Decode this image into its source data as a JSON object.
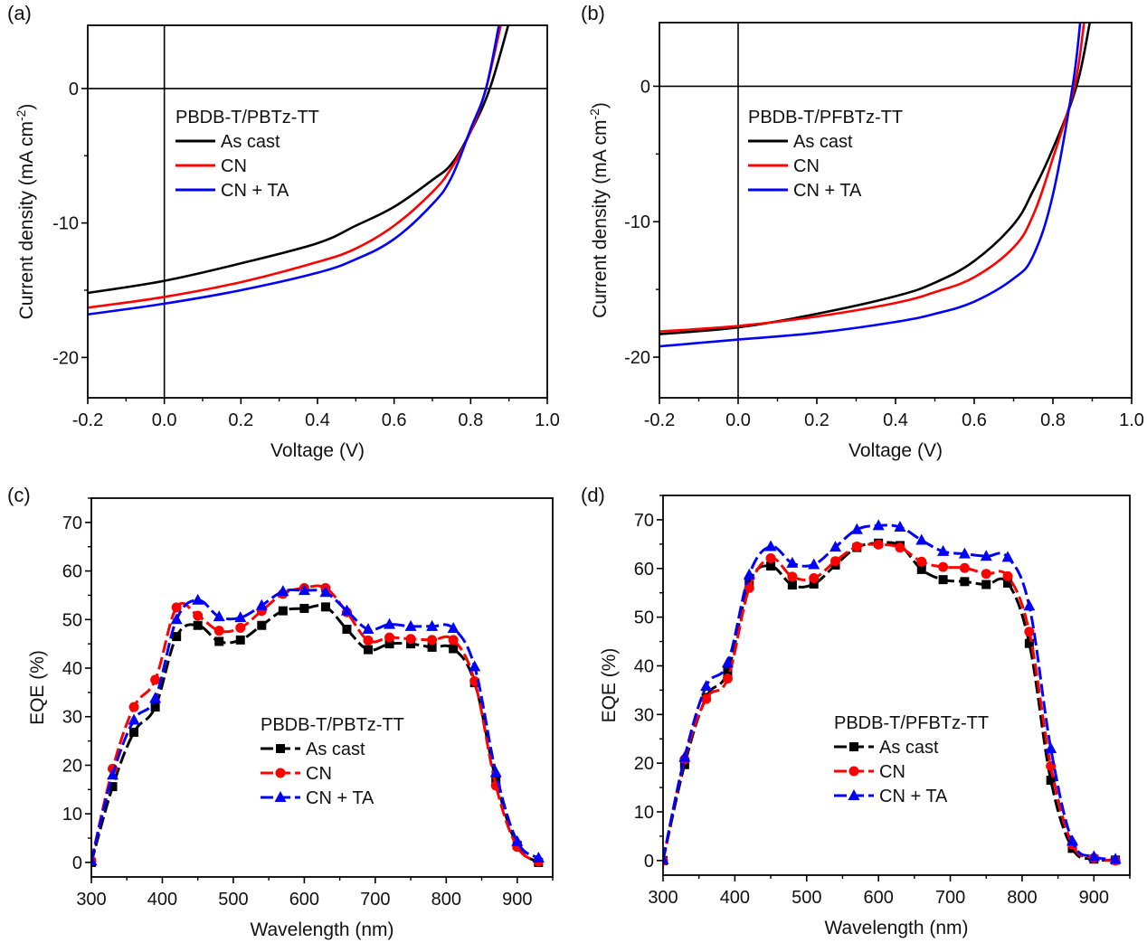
{
  "figure": {
    "panels": [
      "(a)",
      "(b)",
      "(c)",
      "(d)"
    ]
  },
  "chart_data": [
    {
      "id": "a",
      "panel_label": "(a)",
      "type": "line",
      "title": "",
      "xlabel": "Voltage (V)",
      "ylabel": "Current density (mA cm-2)",
      "ylabel_main": "Current density (mA cm",
      "ylabel_sup": "-2",
      "ylabel_end": ")",
      "xlim": [
        -0.2,
        1.0
      ],
      "ylim": [
        -23,
        4.7
      ],
      "xticks": [
        -0.2,
        0.0,
        0.2,
        0.4,
        0.6,
        0.8,
        1.0
      ],
      "xtick_labels": [
        "-0.2",
        "0.0",
        "0.2",
        "0.4",
        "0.6",
        "0.8",
        "1.0"
      ],
      "yticks": [
        0,
        -10,
        -20
      ],
      "ytick_labels": [
        "0",
        "-10",
        "-20"
      ],
      "zero_lines": true,
      "grid": false,
      "legend_title": "PBDB-T/PBTz-TT",
      "legend_position": "upper-left-center",
      "series": [
        {
          "name": "As cast",
          "color": "#000000",
          "x": [
            -0.2,
            0.0,
            0.2,
            0.4,
            0.5,
            0.6,
            0.7,
            0.75,
            0.8,
            0.85,
            0.9
          ],
          "y": [
            -15.2,
            -14.3,
            -13.0,
            -11.5,
            -10.2,
            -8.8,
            -6.8,
            -5.6,
            -3.2,
            0.0,
            4.9
          ]
        },
        {
          "name": "CN",
          "color": "#ff0000",
          "x": [
            -0.2,
            0.0,
            0.2,
            0.4,
            0.5,
            0.6,
            0.7,
            0.75,
            0.8,
            0.84,
            0.88
          ],
          "y": [
            -16.3,
            -15.5,
            -14.4,
            -12.9,
            -11.9,
            -10.2,
            -7.7,
            -5.9,
            -3.2,
            0.0,
            4.9
          ]
        },
        {
          "name": "CN + TA",
          "color": "#0000ff",
          "x": [
            -0.2,
            0.0,
            0.2,
            0.4,
            0.5,
            0.6,
            0.7,
            0.75,
            0.8,
            0.84,
            0.875
          ],
          "y": [
            -16.8,
            -16.0,
            -15.0,
            -13.7,
            -12.7,
            -11.2,
            -8.6,
            -6.6,
            -3.0,
            0.0,
            4.9
          ]
        }
      ]
    },
    {
      "id": "b",
      "panel_label": "(b)",
      "type": "line",
      "title": "",
      "xlabel": "Voltage (V)",
      "ylabel": "Current density (mA cm-2)",
      "ylabel_main": "Current density (mA cm",
      "ylabel_sup": "-2",
      "ylabel_end": ")",
      "xlim": [
        -0.2,
        1.0
      ],
      "ylim": [
        -23,
        4.7
      ],
      "xticks": [
        -0.2,
        0.0,
        0.2,
        0.4,
        0.6,
        0.8,
        1.0
      ],
      "xtick_labels": [
        "-0.2",
        "0.0",
        "0.2",
        "0.4",
        "0.6",
        "0.8",
        "1.0"
      ],
      "yticks": [
        0,
        -10,
        -20
      ],
      "ytick_labels": [
        "0",
        "-10",
        "-20"
      ],
      "zero_lines": true,
      "grid": false,
      "legend_title": "PBDB-T/PFBTz-TT",
      "legend_position": "upper-left-center",
      "series": [
        {
          "name": "As cast",
          "color": "#000000",
          "x": [
            -0.2,
            0.0,
            0.2,
            0.4,
            0.5,
            0.6,
            0.7,
            0.75,
            0.8,
            0.86,
            0.895
          ],
          "y": [
            -18.3,
            -17.8,
            -16.8,
            -15.5,
            -14.5,
            -12.9,
            -10.2,
            -7.7,
            -4.6,
            0.0,
            4.9
          ]
        },
        {
          "name": "CN",
          "color": "#ff0000",
          "x": [
            -0.2,
            0.0,
            0.2,
            0.4,
            0.5,
            0.6,
            0.7,
            0.75,
            0.8,
            0.855,
            0.88
          ],
          "y": [
            -18.1,
            -17.7,
            -17.0,
            -16.0,
            -15.2,
            -14.1,
            -11.9,
            -9.5,
            -5.3,
            0.0,
            4.9
          ]
        },
        {
          "name": "CN + TA",
          "color": "#0000ff",
          "x": [
            -0.2,
            0.0,
            0.2,
            0.4,
            0.5,
            0.6,
            0.7,
            0.75,
            0.8,
            0.85,
            0.87
          ],
          "y": [
            -19.2,
            -18.7,
            -18.2,
            -17.4,
            -16.8,
            -15.9,
            -14.2,
            -12.5,
            -8.0,
            0.0,
            4.9
          ]
        }
      ]
    },
    {
      "id": "c",
      "panel_label": "(c)",
      "type": "line",
      "title": "",
      "xlabel": "Wavelength (nm)",
      "ylabel": "EQE (%)",
      "xlim": [
        300,
        950
      ],
      "ylim": [
        -3,
        75
      ],
      "xticks": [
        300,
        400,
        500,
        600,
        700,
        800,
        900
      ],
      "xtick_labels": [
        "300",
        "400",
        "500",
        "600",
        "700",
        "800",
        "900"
      ],
      "yticks": [
        0,
        10,
        20,
        30,
        40,
        50,
        60,
        70
      ],
      "ytick_labels": [
        "0",
        "10",
        "20",
        "30",
        "40",
        "50",
        "60",
        "70"
      ],
      "grid": false,
      "legend_title": "PBDB-T/PBTz-TT",
      "legend_position": "lower-center",
      "x": [
        300,
        330,
        360,
        390,
        420,
        450,
        480,
        510,
        540,
        570,
        600,
        630,
        660,
        690,
        720,
        750,
        780,
        810,
        840,
        870,
        900,
        930
      ],
      "series": [
        {
          "name": "As cast",
          "color": "#000000",
          "marker": "square",
          "values": [
            0.0,
            15.6,
            26.8,
            32.0,
            46.5,
            48.8,
            45.5,
            45.8,
            48.8,
            51.8,
            52.3,
            52.6,
            48.0,
            43.8,
            45.0,
            45.0,
            44.3,
            44.0,
            37.0,
            17.0,
            3.5,
            0.0
          ]
        },
        {
          "name": "CN",
          "color": "#ff0000",
          "marker": "circle",
          "values": [
            0.3,
            19.3,
            32.0,
            37.6,
            52.5,
            50.8,
            47.7,
            48.3,
            51.8,
            55.3,
            56.5,
            56.5,
            51.5,
            45.7,
            46.3,
            46.0,
            45.8,
            45.8,
            37.3,
            15.8,
            3.2,
            0.2
          ]
        },
        {
          "name": "CN + TA",
          "color": "#0000ff",
          "marker": "triangle",
          "values": [
            0.3,
            18.0,
            29.3,
            33.8,
            50.0,
            54.0,
            50.6,
            50.4,
            52.9,
            55.8,
            56.0,
            55.6,
            51.8,
            48.0,
            49.0,
            48.6,
            48.6,
            48.2,
            40.3,
            18.5,
            4.3,
            0.9
          ]
        }
      ]
    },
    {
      "id": "d",
      "panel_label": "(d)",
      "type": "line",
      "title": "",
      "xlabel": "Wavelength (nm)",
      "ylabel": "EQE (%)",
      "xlim": [
        300,
        950
      ],
      "ylim": [
        -3,
        75
      ],
      "xticks": [
        300,
        400,
        500,
        600,
        700,
        800,
        900
      ],
      "xtick_labels": [
        "300",
        "400",
        "500",
        "600",
        "700",
        "800",
        "900"
      ],
      "yticks": [
        0,
        10,
        20,
        30,
        40,
        50,
        60,
        70
      ],
      "ytick_labels": [
        "0",
        "10",
        "20",
        "30",
        "40",
        "50",
        "60",
        "70"
      ],
      "grid": false,
      "legend_title": "PBDB-T/PFBTz-TT",
      "legend_position": "lower-center",
      "x": [
        300,
        330,
        360,
        390,
        420,
        450,
        480,
        510,
        540,
        570,
        600,
        630,
        660,
        690,
        720,
        750,
        780,
        810,
        840,
        870,
        900,
        930
      ],
      "series": [
        {
          "name": "As cast",
          "color": "#000000",
          "marker": "square",
          "values": [
            0.0,
            19.7,
            33.5,
            38.8,
            57.0,
            60.5,
            56.6,
            56.8,
            60.7,
            64.3,
            65.2,
            64.7,
            59.8,
            57.7,
            57.3,
            56.7,
            57.0,
            44.6,
            16.5,
            2.5,
            0.3,
            0.1
          ]
        },
        {
          "name": "CN",
          "color": "#ff0000",
          "marker": "circle",
          "values": [
            0.0,
            20.8,
            33.2,
            37.4,
            56.0,
            62.1,
            58.3,
            58.0,
            61.5,
            64.5,
            64.9,
            64.3,
            61.4,
            60.3,
            60.1,
            58.9,
            58.4,
            47.0,
            19.4,
            3.3,
            0.5,
            0.0
          ]
        },
        {
          "name": "CN + TA",
          "color": "#0000ff",
          "marker": "triangle",
          "values": [
            0.2,
            21.2,
            35.8,
            40.6,
            58.7,
            64.5,
            61.1,
            60.8,
            64.4,
            68.0,
            68.8,
            68.5,
            65.8,
            63.5,
            63.0,
            62.5,
            62.3,
            52.3,
            23.0,
            4.0,
            0.8,
            0.3
          ]
        }
      ]
    }
  ]
}
